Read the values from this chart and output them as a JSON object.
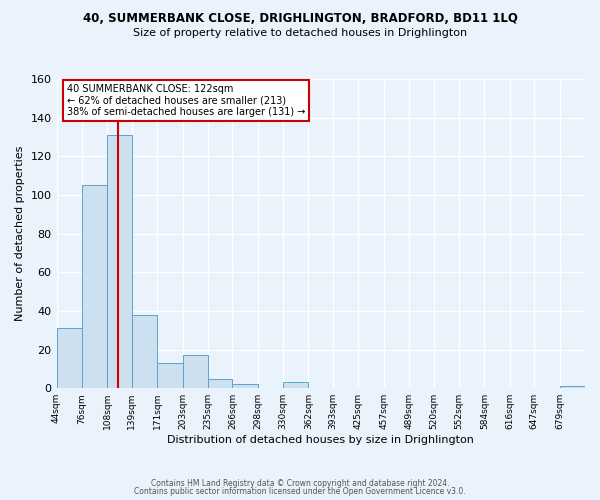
{
  "title": "40, SUMMERBANK CLOSE, DRIGHLINGTON, BRADFORD, BD11 1LQ",
  "subtitle": "Size of property relative to detached houses in Drighlington",
  "xlabel": "Distribution of detached houses by size in Drighlington",
  "ylabel": "Number of detached properties",
  "bin_edges": [
    44,
    76,
    108,
    139,
    171,
    203,
    235,
    266,
    298,
    330,
    362,
    393,
    425,
    457,
    489,
    520,
    552,
    584,
    616,
    647,
    679,
    711
  ],
  "bar_heights": [
    31,
    105,
    131,
    38,
    13,
    17,
    5,
    2,
    0,
    3,
    0,
    0,
    0,
    0,
    0,
    0,
    0,
    0,
    0,
    0,
    1
  ],
  "bar_color": "#cce0f0",
  "bar_edge_color": "#5ba3d0",
  "vline_x": 122,
  "vline_color": "#cc0000",
  "ylim": [
    0,
    160
  ],
  "yticks": [
    0,
    20,
    40,
    60,
    80,
    100,
    120,
    140,
    160
  ],
  "annotation_line1": "40 SUMMERBANK CLOSE: 122sqm",
  "annotation_line2": "← 62% of detached houses are smaller (213)",
  "annotation_line3": "38% of semi-detached houses are larger (131) →",
  "annotation_box_color": "#ffffff",
  "annotation_box_edge_color": "#cc0000",
  "footer_line1": "Contains HM Land Registry data © Crown copyright and database right 2024.",
  "footer_line2": "Contains public sector information licensed under the Open Government Licence v3.0.",
  "bg_color": "#eaf2fb",
  "plot_bg_color": "#eaf2fb",
  "grid_color": "#ffffff",
  "tick_labels": [
    "44sqm",
    "76sqm",
    "108sqm",
    "139sqm",
    "171sqm",
    "203sqm",
    "235sqm",
    "266sqm",
    "298sqm",
    "330sqm",
    "362sqm",
    "393sqm",
    "425sqm",
    "457sqm",
    "489sqm",
    "520sqm",
    "552sqm",
    "584sqm",
    "616sqm",
    "647sqm",
    "679sqm"
  ]
}
